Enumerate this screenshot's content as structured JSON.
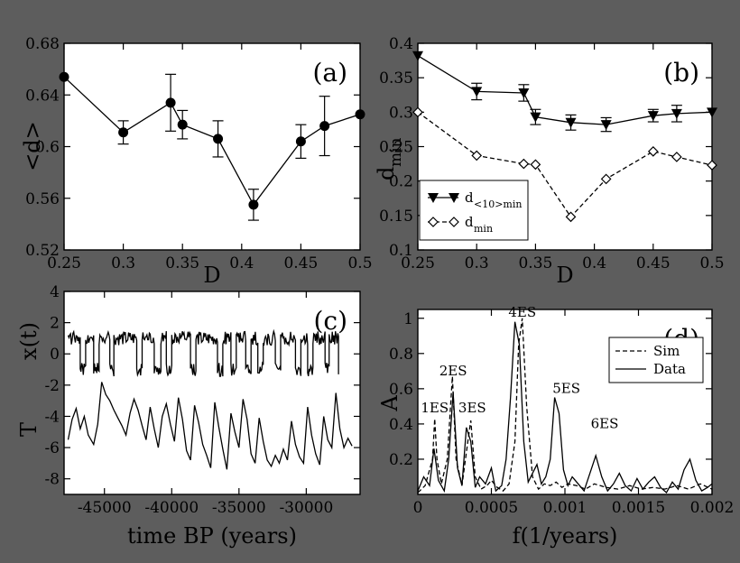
{
  "colors": {
    "background": "#5d5d5d",
    "plot_bg": "#ffffff",
    "ink": "#000000"
  },
  "chart_data": [
    {
      "type": "line",
      "panel_label": "(a)",
      "xlabel": "D",
      "ylabel": "<d>",
      "xlim": [
        0.25,
        0.5
      ],
      "ylim": [
        0.52,
        0.68
      ],
      "xticks": [
        0.25,
        0.3,
        0.35,
        0.4,
        0.45,
        0.5
      ],
      "xtick_labels": [
        "0.25",
        "0.3",
        "0.35",
        "0.4",
        "0.45",
        "0.5"
      ],
      "yticks": [
        0.52,
        0.56,
        0.6,
        0.64,
        0.68
      ],
      "ytick_labels": [
        "0.52",
        "0.56",
        "0.6",
        "0.64",
        "0.68"
      ],
      "series": [
        {
          "marker": "filled-circle",
          "x": [
            0.25,
            0.3,
            0.34,
            0.35,
            0.38,
            0.41,
            0.45,
            0.47,
            0.5
          ],
          "y": [
            0.654,
            0.611,
            0.634,
            0.617,
            0.606,
            0.555,
            0.604,
            0.616,
            0.625
          ],
          "err": [
            0,
            0.009,
            0.022,
            0.011,
            0.014,
            0.012,
            0.013,
            0.023,
            0
          ]
        }
      ]
    },
    {
      "type": "line",
      "panel_label": "(b)",
      "xlabel": "D",
      "ylabel": "d",
      "ylabel_sub": "min",
      "xlim": [
        0.25,
        0.5
      ],
      "ylim": [
        0.1,
        0.4
      ],
      "xticks": [
        0.25,
        0.3,
        0.35,
        0.4,
        0.45,
        0.5
      ],
      "xtick_labels": [
        "0.25",
        "0.3",
        "0.35",
        "0.4",
        "0.45",
        "0.5"
      ],
      "yticks": [
        0.1,
        0.15,
        0.2,
        0.25,
        0.3,
        0.35,
        0.4
      ],
      "ytick_labels": [
        "0.1",
        "0.15",
        "0.2",
        "0.25",
        "0.3",
        "0.35",
        "0.4"
      ],
      "legend_position": "bottom-left",
      "series": [
        {
          "name": "d",
          "name_sub": "<10>min",
          "marker": "filled-triangle-down",
          "dash": "solid",
          "x": [
            0.25,
            0.3,
            0.34,
            0.35,
            0.38,
            0.41,
            0.45,
            0.47,
            0.5
          ],
          "y": [
            0.382,
            0.33,
            0.328,
            0.293,
            0.285,
            0.282,
            0.295,
            0.298,
            0.3
          ],
          "err": [
            0,
            0.012,
            0.012,
            0.011,
            0.011,
            0.01,
            0.009,
            0.012,
            0
          ]
        },
        {
          "name": "d",
          "name_sub": "min",
          "marker": "open-diamond",
          "dash": "dashed",
          "x": [
            0.25,
            0.3,
            0.34,
            0.35,
            0.38,
            0.41,
            0.45,
            0.47,
            0.5
          ],
          "y": [
            0.3,
            0.237,
            0.225,
            0.224,
            0.148,
            0.203,
            0.243,
            0.235,
            0.223
          ]
        }
      ]
    },
    {
      "type": "line",
      "panel_label": "(c)",
      "xlabel": "time BP (years)",
      "ylabel_main": "T",
      "ylabel_alt": "x(t)",
      "xlim": [
        -48000,
        -26000
      ],
      "ylim": [
        -9,
        4
      ],
      "xticks": [
        -45000,
        -40000,
        -35000,
        -30000
      ],
      "xtick_labels": [
        "-45000",
        "-40000",
        "-35000",
        "-30000"
      ],
      "yticks": [
        -8,
        -6,
        -4,
        -2,
        0,
        2,
        4
      ],
      "ytick_labels": [
        "-8",
        "-6",
        "-4",
        "-2",
        "0",
        "2",
        "4"
      ],
      "series": [
        {
          "label": "x(t)",
          "x": [
            -47700,
            -46800,
            -46400,
            -45800,
            -45400,
            -44600,
            -44300,
            -42600,
            -42200,
            -41300,
            -40800,
            -40400,
            -40000,
            -38600,
            -38200,
            -36600,
            -36200,
            -35600,
            -35200,
            -34500,
            -34100,
            -33600,
            -33200,
            -32300,
            -31900,
            -30800,
            -30400,
            -29900,
            -29500,
            -28600,
            -28300,
            -27600
          ],
          "y": [
            1,
            -1,
            1,
            -1,
            1,
            -1,
            1,
            -1,
            1,
            -1,
            1,
            -1,
            1,
            -1,
            1,
            -1,
            1,
            -1,
            1,
            -1,
            1,
            -1,
            1,
            -1,
            1,
            -1,
            1,
            -1,
            1,
            -1,
            1,
            -1
          ]
        },
        {
          "label": "T",
          "x": [
            -47700,
            -47400,
            -47100,
            -46800,
            -46500,
            -46200,
            -45800,
            -45500,
            -45200,
            -44900,
            -44600,
            -44300,
            -44000,
            -43700,
            -43400,
            -43100,
            -42800,
            -42500,
            -42200,
            -41900,
            -41600,
            -41300,
            -41000,
            -40700,
            -40400,
            -40100,
            -39800,
            -39500,
            -39200,
            -38900,
            -38600,
            -38300,
            -38000,
            -37700,
            -37400,
            -37100,
            -36800,
            -36500,
            -36200,
            -35900,
            -35600,
            -35300,
            -35000,
            -34700,
            -34400,
            -34100,
            -33800,
            -33500,
            -33200,
            -32900,
            -32600,
            -32300,
            -32000,
            -31700,
            -31400,
            -31100,
            -30800,
            -30500,
            -30200,
            -29900,
            -29600,
            -29300,
            -29000,
            -28700,
            -28400,
            -28100,
            -27800,
            -27500,
            -27200,
            -26900,
            -26600
          ],
          "y": [
            -5.5,
            -4.2,
            -3.5,
            -4.8,
            -4.0,
            -5.2,
            -5.8,
            -4.5,
            -1.8,
            -2.6,
            -3.0,
            -3.6,
            -4.1,
            -4.6,
            -5.2,
            -3.8,
            -2.9,
            -3.6,
            -4.6,
            -5.5,
            -3.4,
            -4.8,
            -6.0,
            -4.0,
            -3.2,
            -4.5,
            -5.6,
            -2.8,
            -4.2,
            -6.2,
            -6.8,
            -3.3,
            -4.4,
            -5.8,
            -6.5,
            -7.3,
            -3.1,
            -4.7,
            -6.1,
            -7.4,
            -3.8,
            -5.0,
            -6.0,
            -2.9,
            -4.2,
            -6.4,
            -7.0,
            -4.1,
            -5.6,
            -6.8,
            -7.2,
            -6.5,
            -7.0,
            -6.1,
            -6.8,
            -4.3,
            -5.8,
            -6.6,
            -7.0,
            -3.4,
            -5.2,
            -6.4,
            -7.1,
            -4.0,
            -5.5,
            -6.0,
            -2.5,
            -4.8,
            -6.0,
            -5.4,
            -5.9
          ]
        }
      ]
    },
    {
      "type": "line",
      "panel_label": "(d)",
      "xlabel": "f(1/years)",
      "ylabel": "A",
      "xlim": [
        0,
        0.002
      ],
      "ylim": [
        0,
        1.05
      ],
      "xticks": [
        0,
        0.0005,
        0.001,
        0.0015,
        0.002
      ],
      "xtick_labels": [
        "0",
        "0.0005",
        "0.001",
        "0.0015",
        "0.002"
      ],
      "yticks": [
        0.2,
        0.4,
        0.6,
        0.8,
        1
      ],
      "ytick_labels": [
        "0.2",
        "0.4",
        "0.6",
        "0.8",
        "1"
      ],
      "legend_position": "top-right",
      "annotations": [
        {
          "text": "1ES",
          "x": 0.000115,
          "y": 0.455
        },
        {
          "text": "2ES",
          "x": 0.00024,
          "y": 0.665
        },
        {
          "text": "3ES",
          "x": 0.00037,
          "y": 0.455
        },
        {
          "text": "4ES",
          "x": 0.00071,
          "y": 1.0
        },
        {
          "text": "5ES",
          "x": 0.00101,
          "y": 0.565
        },
        {
          "text": "6ES",
          "x": 0.00127,
          "y": 0.365
        }
      ],
      "series": [
        {
          "name": "Sim",
          "dash": "dashed",
          "x": [
            0,
            5e-05,
            0.0001,
            0.000115,
            0.00013,
            0.00016,
            0.0002,
            0.000235,
            0.00026,
            0.0003,
            0.00034,
            0.00036,
            0.00039,
            0.00043,
            0.00047,
            0.0005,
            0.00054,
            0.00058,
            0.00062,
            0.00066,
            0.000685,
            0.00071,
            0.00074,
            0.00078,
            0.00082,
            0.00086,
            0.0009,
            0.00094,
            0.00098,
            0.00102,
            0.00108,
            0.00114,
            0.0012,
            0.00128,
            0.00136,
            0.00144,
            0.00152,
            0.0016,
            0.00168,
            0.00176,
            0.00184,
            0.00192,
            0.002
          ],
          "y": [
            0.01,
            0.05,
            0.2,
            0.43,
            0.2,
            0.06,
            0.2,
            0.67,
            0.2,
            0.05,
            0.3,
            0.42,
            0.1,
            0.03,
            0.05,
            0.08,
            0.04,
            0.02,
            0.06,
            0.3,
            0.85,
            1.0,
            0.5,
            0.1,
            0.03,
            0.06,
            0.05,
            0.07,
            0.04,
            0.06,
            0.05,
            0.03,
            0.06,
            0.04,
            0.03,
            0.05,
            0.03,
            0.04,
            0.03,
            0.05,
            0.03,
            0.06,
            0.03
          ]
        },
        {
          "name": "Data",
          "dash": "solid",
          "x": [
            0,
            4e-05,
            8e-05,
            0.00011,
            0.00014,
            0.00018,
            0.00021,
            0.00024,
            0.00027,
            0.0003,
            0.00033,
            0.00036,
            0.00039,
            0.00042,
            0.00046,
            0.0005,
            0.00053,
            0.00057,
            0.0006,
            0.00063,
            0.00066,
            0.00069,
            0.00072,
            0.00075,
            0.00078,
            0.00081,
            0.00084,
            0.00087,
            0.0009,
            0.00093,
            0.00096,
            0.00099,
            0.00102,
            0.00105,
            0.00109,
            0.00113,
            0.00117,
            0.00121,
            0.00125,
            0.00129,
            0.00133,
            0.00137,
            0.00141,
            0.00145,
            0.00149,
            0.00153,
            0.00157,
            0.00161,
            0.00165,
            0.00169,
            0.00173,
            0.00177,
            0.00181,
            0.00185,
            0.00189,
            0.00193,
            0.00197,
            0.002
          ],
          "y": [
            0.02,
            0.1,
            0.05,
            0.26,
            0.08,
            0.02,
            0.2,
            0.58,
            0.15,
            0.05,
            0.38,
            0.3,
            0.04,
            0.1,
            0.06,
            0.15,
            0.02,
            0.05,
            0.2,
            0.55,
            0.98,
            0.85,
            0.3,
            0.07,
            0.12,
            0.17,
            0.06,
            0.1,
            0.2,
            0.55,
            0.46,
            0.14,
            0.05,
            0.1,
            0.06,
            0.02,
            0.12,
            0.22,
            0.1,
            0.02,
            0.06,
            0.12,
            0.05,
            0.02,
            0.09,
            0.03,
            0.07,
            0.1,
            0.04,
            0.01,
            0.07,
            0.03,
            0.14,
            0.2,
            0.08,
            0.02,
            0.04,
            0.06
          ]
        }
      ]
    }
  ]
}
